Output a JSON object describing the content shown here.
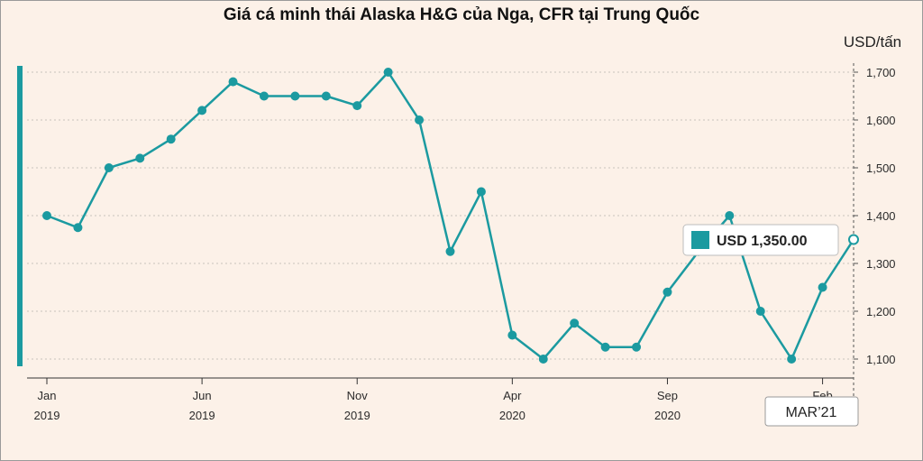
{
  "chart_data": {
    "type": "line",
    "title": "Giá cá minh thái Alaska H&G của Nga, CFR tại Trung Quốc",
    "ylabel": "USD/tấn",
    "xlabel": "",
    "ylim": [
      1080,
      1720
    ],
    "y_ticks": [
      1100,
      1200,
      1300,
      1400,
      1500,
      1600,
      1700
    ],
    "y_tick_labels": [
      "1,100",
      "1,200",
      "1,300",
      "1,400",
      "1,500",
      "1,600",
      "1,700"
    ],
    "x_ticks": [
      {
        "month": "Jan",
        "year": "2019"
      },
      {
        "month": "Jun",
        "year": "2019"
      },
      {
        "month": "Nov",
        "year": "2019"
      },
      {
        "month": "Apr",
        "year": "2020"
      },
      {
        "month": "Sep",
        "year": "2020"
      },
      {
        "month": "Feb",
        "year": ""
      }
    ],
    "series": [
      {
        "x": [
          "2019-01",
          "2019-02",
          "2019-03",
          "2019-04",
          "2019-05",
          "2019-06",
          "2019-07",
          "2019-08",
          "2019-09",
          "2019-10",
          "2019-11",
          "2019-12",
          "2020-01",
          "2020-02",
          "2020-03",
          "2020-04",
          "2020-05",
          "2020-06",
          "2020-07",
          "2020-08",
          "2020-09",
          "2020-10",
          "2020-11",
          "2020-12",
          "2021-01",
          "2021-02",
          "2021-03"
        ],
        "values": [
          1400,
          1375,
          1500,
          1520,
          1560,
          1620,
          1680,
          1650,
          1650,
          1650,
          1630,
          1700,
          1600,
          1325,
          1450,
          1150,
          1100,
          1175,
          1125,
          1125,
          1240,
          1325,
          1400,
          1200,
          1100,
          1250,
          1350
        ]
      }
    ],
    "grid": "horizontal dotted",
    "line_color": "#1b9aa0",
    "tooltip": {
      "label": "USD 1,350.00",
      "date": "MAR’21"
    }
  }
}
